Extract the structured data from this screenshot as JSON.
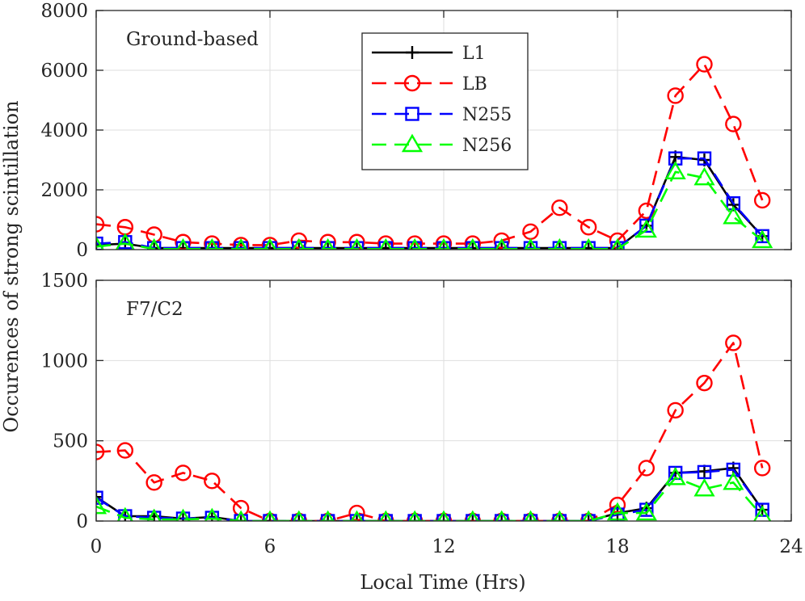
{
  "chart_data": [
    {
      "type": "line",
      "panel_label": "Ground-based",
      "x": [
        0,
        1,
        2,
        3,
        4,
        5,
        6,
        7,
        8,
        9,
        10,
        11,
        12,
        13,
        14,
        15,
        16,
        17,
        18,
        19,
        20,
        21,
        22,
        23
      ],
      "xlim": [
        0,
        24
      ],
      "xticks": [
        0,
        6,
        12,
        18,
        24
      ],
      "ylim": [
        0,
        8000
      ],
      "yticks": [
        0,
        2000,
        4000,
        6000,
        8000
      ],
      "grid": true,
      "legend_position": "top-center",
      "series": [
        {
          "name": "L1",
          "color": "#000000",
          "linestyle": "solid",
          "marker": "plus",
          "values": [
            150,
            200,
            50,
            50,
            50,
            50,
            50,
            50,
            50,
            50,
            50,
            50,
            50,
            50,
            50,
            50,
            50,
            50,
            50,
            800,
            3100,
            3000,
            1500,
            450
          ]
        },
        {
          "name": "LB",
          "color": "#ff0000",
          "linestyle": "dashed",
          "marker": "circle",
          "values": [
            850,
            750,
            500,
            250,
            200,
            150,
            150,
            300,
            250,
            250,
            200,
            200,
            200,
            200,
            300,
            600,
            1400,
            750,
            300,
            1300,
            5150,
            6200,
            4200,
            1650
          ]
        },
        {
          "name": "N255",
          "color": "#0000ff",
          "linestyle": "dashed",
          "marker": "square",
          "values": [
            200,
            250,
            50,
            50,
            50,
            50,
            50,
            50,
            50,
            50,
            50,
            50,
            50,
            50,
            50,
            50,
            50,
            50,
            50,
            800,
            3050,
            3050,
            1550,
            450
          ]
        },
        {
          "name": "N256",
          "color": "#00ff00",
          "linestyle": "dashed",
          "marker": "triangle",
          "values": [
            100,
            200,
            20,
            20,
            20,
            20,
            20,
            20,
            20,
            20,
            20,
            20,
            20,
            20,
            20,
            20,
            20,
            20,
            20,
            650,
            2600,
            2400,
            1100,
            300
          ]
        }
      ]
    },
    {
      "type": "line",
      "panel_label": "F7/C2",
      "x": [
        0,
        1,
        2,
        3,
        4,
        5,
        6,
        7,
        8,
        9,
        10,
        11,
        12,
        13,
        14,
        15,
        16,
        17,
        18,
        19,
        20,
        21,
        22,
        23
      ],
      "xlim": [
        0,
        24
      ],
      "xticks": [
        0,
        6,
        12,
        18,
        24
      ],
      "ylim": [
        0,
        1500
      ],
      "yticks": [
        0,
        500,
        1000,
        1500
      ],
      "grid": true,
      "xlabel": "Local Time (Hrs)",
      "series": [
        {
          "name": "L1",
          "color": "#000000",
          "linestyle": "solid",
          "marker": "plus",
          "values": [
            150,
            30,
            30,
            15,
            25,
            0,
            0,
            0,
            0,
            0,
            0,
            0,
            0,
            0,
            0,
            0,
            0,
            0,
            50,
            80,
            300,
            310,
            330,
            70
          ]
        },
        {
          "name": "LB",
          "color": "#ff0000",
          "linestyle": "dashed",
          "marker": "circle",
          "values": [
            430,
            440,
            240,
            300,
            250,
            80,
            0,
            0,
            0,
            50,
            0,
            0,
            0,
            0,
            0,
            0,
            0,
            0,
            100,
            330,
            690,
            860,
            1110,
            330
          ]
        },
        {
          "name": "N255",
          "color": "#0000ff",
          "linestyle": "dashed",
          "marker": "square",
          "values": [
            145,
            30,
            20,
            15,
            20,
            0,
            0,
            0,
            0,
            0,
            0,
            0,
            0,
            0,
            0,
            0,
            0,
            0,
            40,
            70,
            300,
            305,
            320,
            70
          ]
        },
        {
          "name": "N256",
          "color": "#00ff00",
          "linestyle": "dashed",
          "marker": "triangle",
          "values": [
            90,
            20,
            10,
            10,
            15,
            0,
            0,
            0,
            0,
            0,
            0,
            0,
            0,
            0,
            0,
            0,
            0,
            0,
            50,
            50,
            270,
            200,
            240,
            30
          ]
        }
      ]
    }
  ],
  "shared_ylabel": "Occurences of strong scintillation"
}
